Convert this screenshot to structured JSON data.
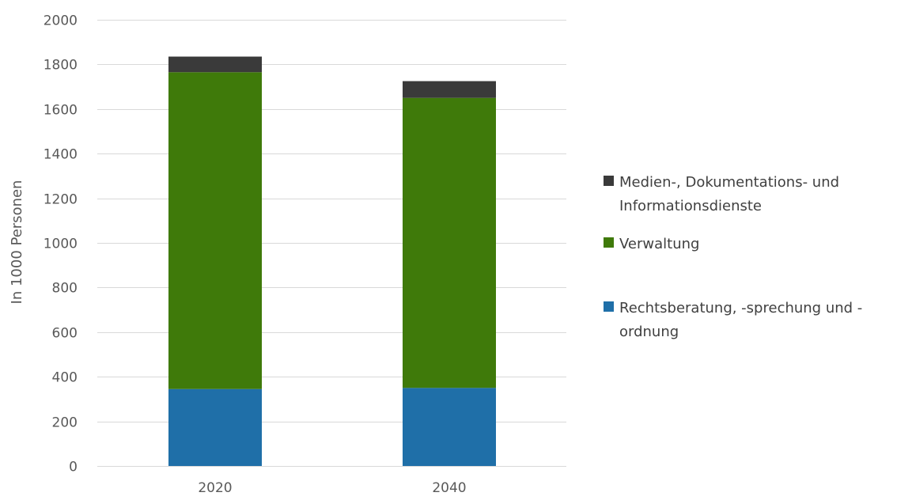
{
  "chart_data": {
    "type": "bar",
    "stacked": true,
    "categories": [
      "2020",
      "2040"
    ],
    "series": [
      {
        "name": "Rechtsberatung, -sprechung und -ordnung",
        "legend_lines": [
          "Rechtsberatung, -sprechung und -",
          "ordnung"
        ],
        "color": "#1f6fa8",
        "values": [
          345,
          350
        ]
      },
      {
        "name": "Verwaltung",
        "legend_lines": [
          "Verwaltung"
        ],
        "color": "#3f7a0a",
        "values": [
          1420,
          1300
        ]
      },
      {
        "name": "Medien-, Dokumentations- und Informationsdienste",
        "legend_lines": [
          "Medien-, Dokumentations- und",
          "Informationsdienste"
        ],
        "color": "#3a3a3a",
        "values": [
          70,
          75
        ]
      }
    ],
    "ylabel": "In 1000 Personen",
    "xlabel": "",
    "title": "",
    "ylim": [
      0,
      2000
    ],
    "yticks": [
      0,
      200,
      400,
      600,
      800,
      1000,
      1200,
      1400,
      1600,
      1800,
      2000
    ],
    "grid": true,
    "legend_position": "right",
    "legend_order": [
      2,
      1,
      0
    ],
    "colors": {
      "grid": "#d9d9d9",
      "text": "#595959"
    }
  }
}
